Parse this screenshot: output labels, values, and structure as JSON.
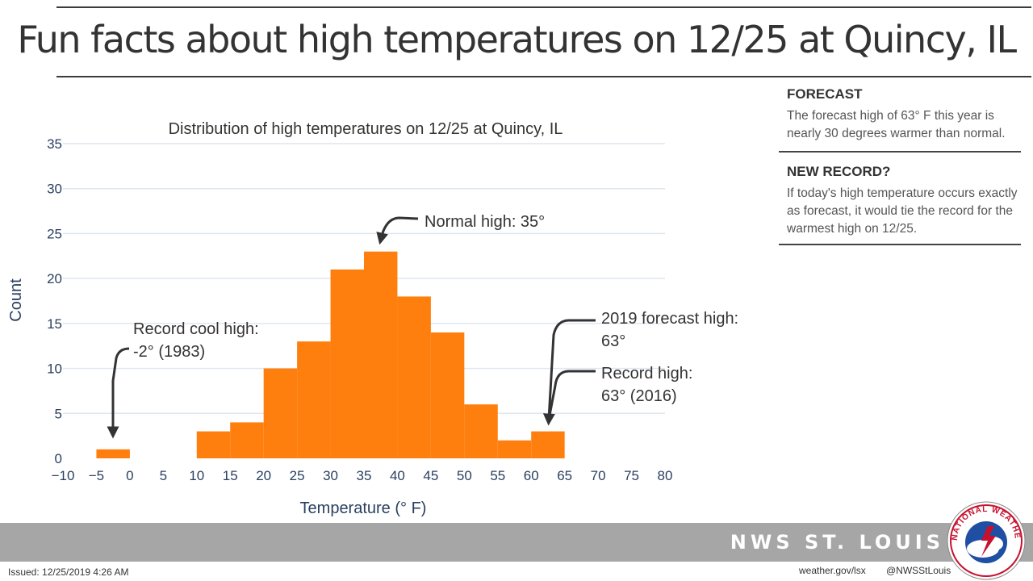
{
  "header": {
    "title": "Fun facts about high temperatures on 12/25 at Quincy, IL"
  },
  "chart_data": {
    "type": "bar",
    "title": "Distribution of high temperatures on 12/25 at Quincy, IL",
    "xlabel": "Temperature (° F)",
    "ylabel": "Count",
    "bin_edges": [
      -5,
      0,
      5,
      10,
      15,
      20,
      25,
      30,
      35,
      40,
      45,
      50,
      55,
      60,
      65
    ],
    "values": [
      1,
      0,
      0,
      3,
      4,
      10,
      13,
      21,
      23,
      18,
      14,
      6,
      2,
      3
    ],
    "xlim": [
      -10,
      80
    ],
    "ylim": [
      0,
      35
    ],
    "x_ticks": [
      "−10",
      "−5",
      "0",
      "5",
      "10",
      "15",
      "20",
      "25",
      "30",
      "35",
      "40",
      "45",
      "50",
      "55",
      "60",
      "65",
      "70",
      "75",
      "80"
    ],
    "y_ticks": [
      "0",
      "5",
      "10",
      "15",
      "20",
      "25",
      "30",
      "35"
    ],
    "grid": true,
    "bar_color": "#ff7f0e",
    "annotations": [
      {
        "lines": [
          "Normal high: 35°"
        ]
      },
      {
        "lines": [
          "Record cool high:",
          "-2° (1983)"
        ]
      },
      {
        "lines": [
          "2019 forecast high:",
          "63°"
        ]
      },
      {
        "lines": [
          "Record high:",
          "63° (2016)"
        ]
      }
    ]
  },
  "sidebar": {
    "forecast": {
      "title": "FORECAST",
      "text": "The forecast high of 63° F this year is nearly 30 degrees warmer than normal."
    },
    "record": {
      "title": "NEW RECORD?",
      "text": "If today's high temperature occurs exactly as forecast, it would tie the record for the warmest high on 12/25."
    }
  },
  "footer": {
    "org": "NWS ST. LOUIS",
    "issued": "Issued: 12/25/2019 4:26 AM",
    "website": "weather.gov/lsx",
    "handle": "@NWSStLouis",
    "logo_text": "NATIONAL WEATHER SERVICE"
  }
}
